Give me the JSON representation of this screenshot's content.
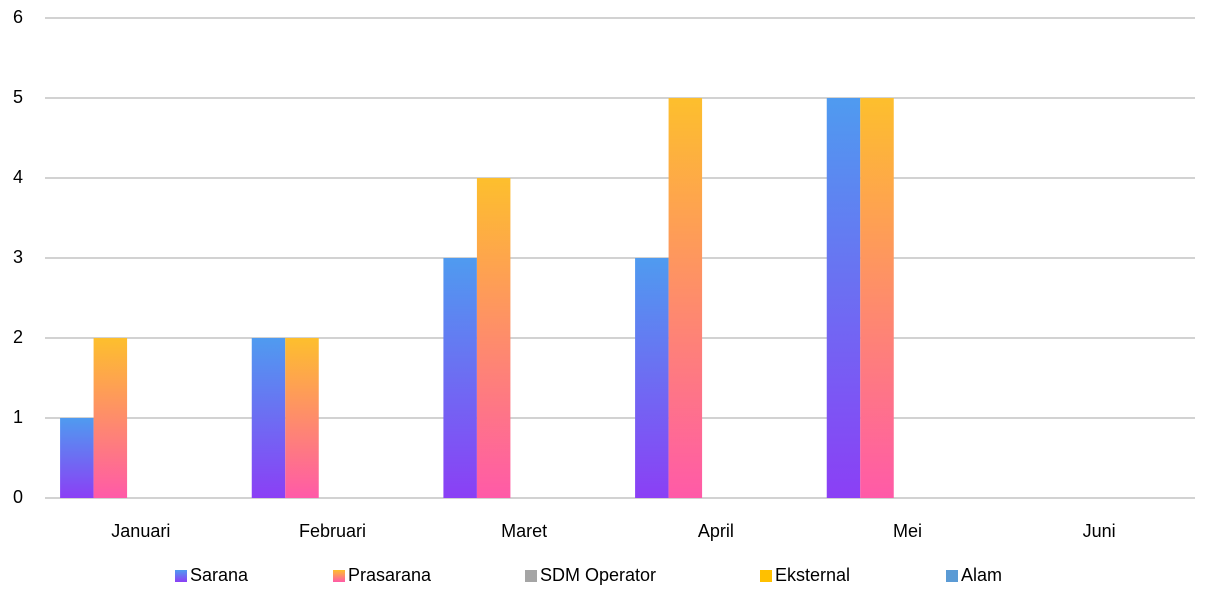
{
  "chart_data": {
    "type": "bar",
    "categories": [
      "Januari",
      "Februari",
      "Maret",
      "April",
      "Mei",
      "Juni"
    ],
    "series": [
      {
        "name": "Sarana",
        "color": [
          "#4f9bf0",
          "#8b3ff5"
        ],
        "values": [
          1,
          2,
          3,
          3,
          5,
          0
        ]
      },
      {
        "name": "Prasarana",
        "color": [
          "#fdbf2d",
          "#ff5aa8"
        ],
        "values": [
          2,
          2,
          4,
          5,
          5,
          0
        ]
      },
      {
        "name": "SDM Operator",
        "color": "#a5a5a5",
        "values": [
          0,
          0,
          0,
          0,
          0,
          0
        ]
      },
      {
        "name": "Eksternal",
        "color": "#ffc000",
        "values": [
          0,
          0,
          0,
          0,
          0,
          0
        ]
      },
      {
        "name": "Alam",
        "color": "#5b9bd5",
        "values": [
          0,
          0,
          0,
          0,
          0,
          0
        ]
      }
    ],
    "ylim": [
      0,
      6
    ],
    "yticks": [
      0,
      1,
      2,
      3,
      4,
      5,
      6
    ],
    "grid": true,
    "legend": "bottom"
  }
}
